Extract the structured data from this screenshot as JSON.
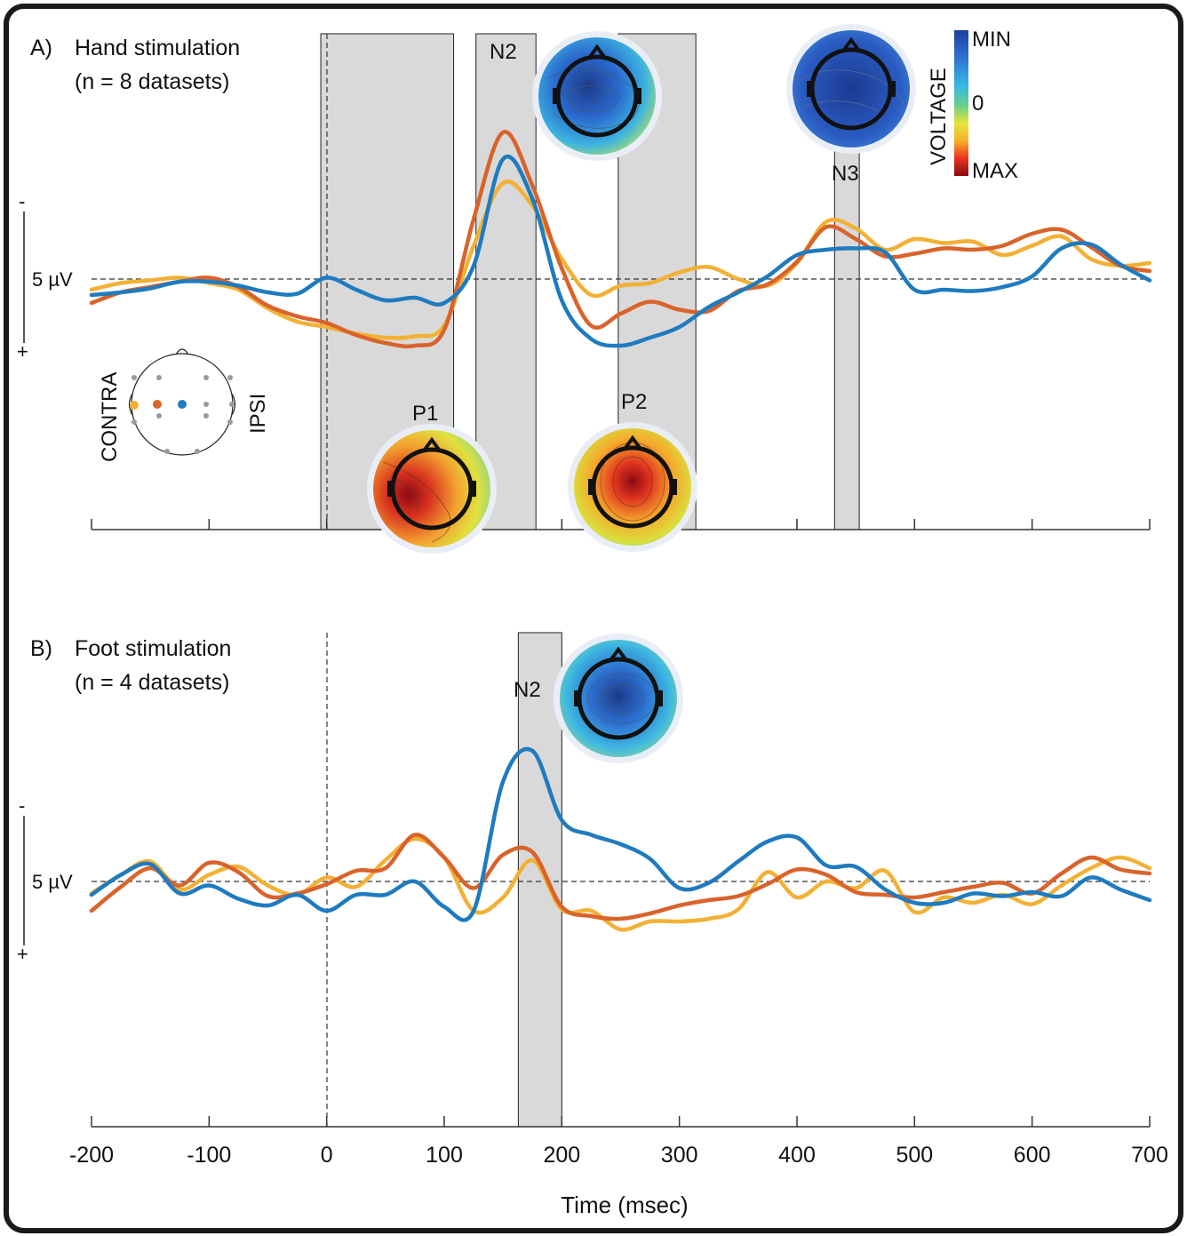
{
  "colors": {
    "contra": "#f2b135",
    "mid": "#d9632b",
    "ipsi": "#1f7bbf",
    "window": "#d9d9d9",
    "frame": "#1a1a1a",
    "colorbar": [
      "#8b0a14",
      "#e8331e",
      "#f7b02a",
      "#e6e43a",
      "#6ccf86",
      "#35b8e6",
      "#2f6fd0",
      "#1e3f9c"
    ]
  },
  "panel_a": {
    "label": "A)",
    "title_line1": "Hand stimulation",
    "title_line2": "(n = 8 datasets)"
  },
  "panel_b": {
    "label": "B)",
    "title_line1": "Foot stimulation",
    "title_line2": "(n = 4 datasets)"
  },
  "scale": {
    "minus": "-",
    "plus": "+",
    "unit_label": "5 µV"
  },
  "electrode_legend": {
    "contra_label": "CONTRA",
    "ipsi_label": "IPSI"
  },
  "colorbar": {
    "title": "VOLTAGE",
    "min_label": "MIN",
    "zero_label": "0",
    "max_label": "MAX"
  },
  "xaxis": {
    "title": "Time (msec)",
    "ticks": [
      "-200",
      "-100",
      "0",
      "100",
      "200",
      "300",
      "400",
      "500",
      "600",
      "700"
    ]
  },
  "chart_data": [
    {
      "type": "line",
      "panel": "A",
      "title": "Hand stimulation",
      "subtitle": "(n = 8 datasets)",
      "xlabel": "Time (msec)",
      "ylabel": "5 µV",
      "xlim": [
        -200,
        700
      ],
      "ylim": [
        -8,
        16
      ],
      "y_orientation": "negative up",
      "x": [
        -200,
        -175,
        -150,
        -125,
        -100,
        -75,
        -50,
        -25,
        0,
        25,
        50,
        75,
        100,
        125,
        150,
        175,
        200,
        225,
        250,
        275,
        300,
        325,
        350,
        375,
        400,
        425,
        450,
        475,
        500,
        525,
        550,
        575,
        600,
        625,
        650,
        675,
        700
      ],
      "series": [
        {
          "color": "contra",
          "values": [
            0.8,
            0.3,
            0.1,
            -0.1,
            0.3,
            0.8,
            2.2,
            3.2,
            3.6,
            4.1,
            4.4,
            4.3,
            3.5,
            -2.5,
            -7.2,
            -5.5,
            -1.5,
            1.2,
            0.5,
            0.3,
            -0.5,
            -0.9,
            0,
            0.5,
            -1.2,
            -4.3,
            -3.8,
            -2.2,
            -3.0,
            -2.7,
            -2.8,
            -1.8,
            -2.5,
            -3.2,
            -1.5,
            -1.0,
            -1.2
          ]
        },
        {
          "color": "mid",
          "values": [
            1.8,
            1.0,
            0.6,
            0.2,
            -0.1,
            0.6,
            2.0,
            2.8,
            3.3,
            4.2,
            4.8,
            5.0,
            3.8,
            -4.5,
            -11.0,
            -7.0,
            -0.8,
            3.5,
            2.6,
            1.7,
            2.3,
            2.4,
            0.9,
            0.4,
            -1.3,
            -3.9,
            -3.0,
            -1.7,
            -1.9,
            -2.3,
            -2.2,
            -2.5,
            -3.4,
            -3.7,
            -2.4,
            -1.0,
            -0.6
          ]
        },
        {
          "color": "ipsi",
          "values": [
            1.2,
            1.0,
            0.7,
            0.2,
            0.2,
            0.5,
            1.0,
            1.1,
            -0.1,
            0.8,
            1.6,
            1.4,
            1.8,
            -1.0,
            -9.0,
            -6.0,
            1.6,
            4.5,
            5.0,
            4.4,
            3.6,
            2.1,
            1.0,
            -0.2,
            -1.8,
            -2.2,
            -2.3,
            -2.0,
            0.8,
            0.8,
            0.9,
            0.6,
            -0.2,
            -2.3,
            -2.6,
            -1.1,
            0.1
          ]
        }
      ]
    },
    {
      "type": "line",
      "panel": "B",
      "title": "Foot stimulation",
      "subtitle": "(n = 4 datasets)",
      "xlabel": "Time (msec)",
      "ylabel": "5 µV",
      "xlim": [
        -200,
        700
      ],
      "ylim": [
        -14,
        10
      ],
      "y_orientation": "negative up",
      "x": [
        -200,
        -175,
        -150,
        -125,
        -100,
        -75,
        -50,
        -25,
        0,
        25,
        50,
        75,
        100,
        125,
        150,
        175,
        200,
        225,
        250,
        275,
        300,
        325,
        350,
        375,
        400,
        425,
        450,
        475,
        500,
        525,
        550,
        575,
        600,
        625,
        650,
        675,
        700
      ],
      "series": [
        {
          "color": "contra",
          "values": [
            0.9,
            -0.5,
            -1.5,
            0.6,
            -0.5,
            -1.1,
            0.3,
            1.0,
            -0.3,
            0.4,
            -1.6,
            -3.2,
            -1.8,
            2.2,
            1.2,
            -1.6,
            2.1,
            2.2,
            3.6,
            3.0,
            3.0,
            2.8,
            2.1,
            -0.7,
            1.2,
            0.0,
            0.5,
            -0.8,
            2.3,
            1.2,
            1.6,
            1.0,
            1.7,
            0.3,
            -1.0,
            -1.8,
            -1.0
          ]
        },
        {
          "color": "mid",
          "values": [
            2.2,
            0.4,
            -1.0,
            0.3,
            -1.4,
            -0.7,
            1.1,
            0.9,
            0.2,
            -0.8,
            -1.0,
            -3.5,
            -1.8,
            0.5,
            -2.0,
            -2.2,
            1.9,
            2.6,
            2.8,
            2.4,
            1.8,
            1.4,
            1.1,
            0.2,
            -0.9,
            -0.5,
            0.8,
            1.0,
            1.2,
            0.8,
            0.4,
            0.1,
            0.9,
            -0.6,
            -1.8,
            -0.9,
            -0.6
          ]
        },
        {
          "color": "ipsi",
          "values": [
            1.0,
            -0.5,
            -1.3,
            0.9,
            0.3,
            1.3,
            1.8,
            1.0,
            2.2,
            1.0,
            1.0,
            0.0,
            1.9,
            2.2,
            -7.5,
            -9.8,
            -4.6,
            -3.5,
            -2.8,
            -1.7,
            0.5,
            0.1,
            -1.5,
            -3.0,
            -3.3,
            -1.2,
            -1.1,
            0.6,
            1.6,
            1.6,
            0.9,
            1.1,
            0.8,
            1.1,
            -0.3,
            0.6,
            1.4
          ]
        }
      ]
    }
  ]
}
